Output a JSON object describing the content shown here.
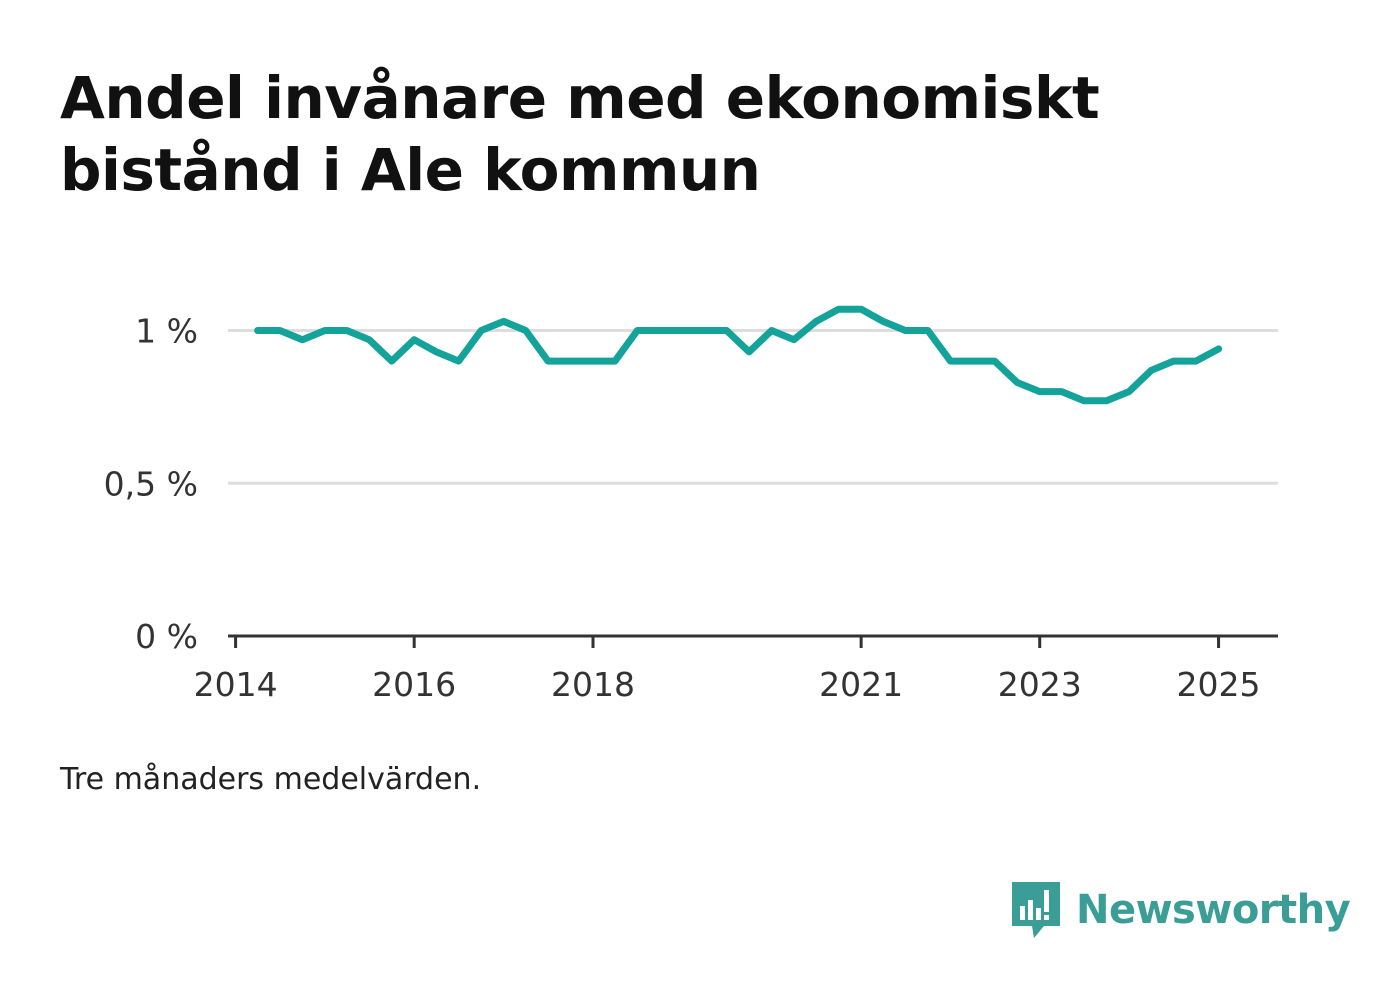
{
  "title": "Andel invånare med ekonomiskt bistånd i Ale kommun",
  "note": "Tre månaders medelvärden.",
  "brand": {
    "name": "Newsworthy",
    "color": "#3a9e96",
    "icon": "newsworthy-logo-icon"
  },
  "colors": {
    "line": "#14a39a",
    "grid": "#dddddd",
    "axis": "#333333"
  },
  "chart_data": {
    "type": "line",
    "title": "Andel invånare med ekonomiskt bistånd i Ale kommun",
    "xlabel": "",
    "ylabel": "",
    "x_ticks": [
      "2014",
      "2016",
      "2018",
      "2021",
      "2023",
      "2025"
    ],
    "y_ticks": [
      "0 %",
      "0,5 %",
      "1 %"
    ],
    "ylim": [
      0,
      1.1
    ],
    "grid": true,
    "series": [
      {
        "values": [
          [
            "2014-04",
            1.0
          ],
          [
            "2014-07",
            1.0
          ],
          [
            "2014-10",
            0.97
          ],
          [
            "2015-01",
            1.0
          ],
          [
            "2015-04",
            1.0
          ],
          [
            "2015-07",
            0.97
          ],
          [
            "2015-10",
            0.9
          ],
          [
            "2016-01",
            0.97
          ],
          [
            "2016-04",
            0.93
          ],
          [
            "2016-07",
            0.9
          ],
          [
            "2016-10",
            1.0
          ],
          [
            "2017-01",
            1.03
          ],
          [
            "2017-04",
            1.0
          ],
          [
            "2017-07",
            0.9
          ],
          [
            "2017-10",
            0.9
          ],
          [
            "2018-01",
            0.9
          ],
          [
            "2018-04",
            0.9
          ],
          [
            "2018-07",
            1.0
          ],
          [
            "2018-10",
            1.0
          ],
          [
            "2019-01",
            1.0
          ],
          [
            "2019-04",
            1.0
          ],
          [
            "2019-07",
            1.0
          ],
          [
            "2019-10",
            0.93
          ],
          [
            "2020-01",
            1.0
          ],
          [
            "2020-04",
            0.97
          ],
          [
            "2020-07",
            1.03
          ],
          [
            "2020-10",
            1.07
          ],
          [
            "2021-01",
            1.07
          ],
          [
            "2021-04",
            1.03
          ],
          [
            "2021-07",
            1.0
          ],
          [
            "2021-10",
            1.0
          ],
          [
            "2022-01",
            0.9
          ],
          [
            "2022-04",
            0.9
          ],
          [
            "2022-07",
            0.9
          ],
          [
            "2022-10",
            0.83
          ],
          [
            "2023-01",
            0.8
          ],
          [
            "2023-04",
            0.8
          ],
          [
            "2023-07",
            0.77
          ],
          [
            "2023-10",
            0.77
          ],
          [
            "2024-01",
            0.8
          ],
          [
            "2024-04",
            0.87
          ],
          [
            "2024-07",
            0.9
          ],
          [
            "2024-10",
            0.9
          ],
          [
            "2025-01",
            0.94
          ]
        ]
      }
    ]
  }
}
